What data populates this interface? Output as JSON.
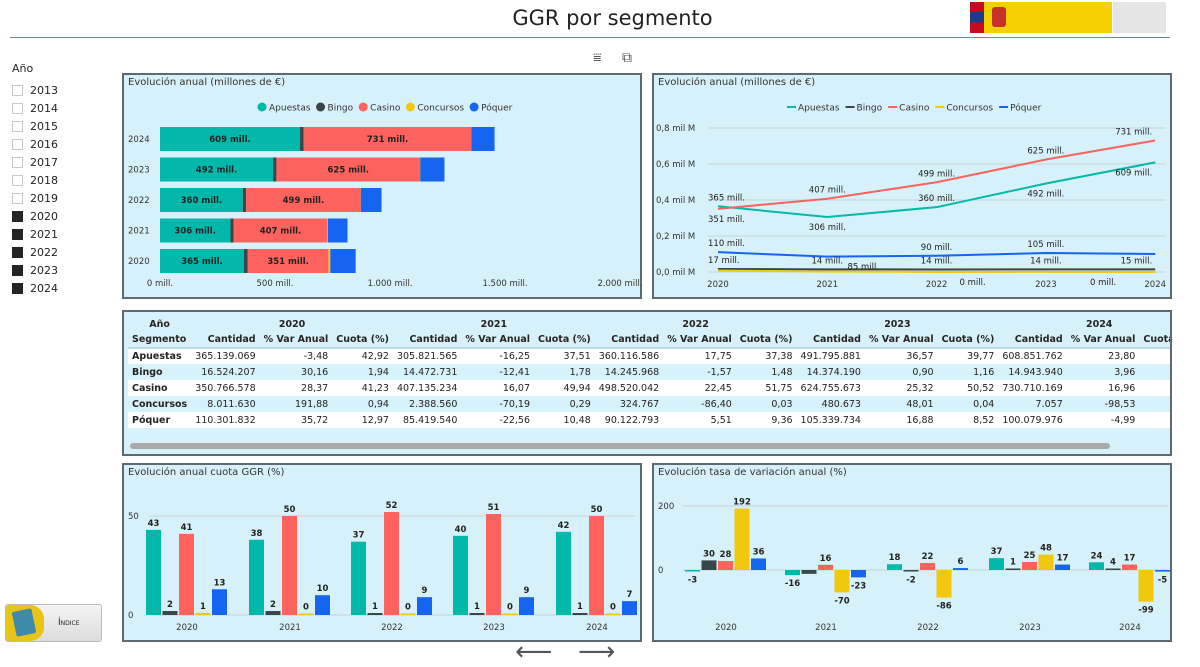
{
  "header": {
    "title": "GGR por segmento"
  },
  "slicer": {
    "title": "Año",
    "items": [
      {
        "label": "2013",
        "checked": false
      },
      {
        "label": "2014",
        "checked": false
      },
      {
        "label": "2015",
        "checked": false
      },
      {
        "label": "2016",
        "checked": false
      },
      {
        "label": "2017",
        "checked": false
      },
      {
        "label": "2018",
        "checked": false
      },
      {
        "label": "2019",
        "checked": false
      },
      {
        "label": "2020",
        "checked": true
      },
      {
        "label": "2021",
        "checked": true
      },
      {
        "label": "2022",
        "checked": true
      },
      {
        "label": "2023",
        "checked": true
      },
      {
        "label": "2024",
        "checked": true
      }
    ]
  },
  "icons": {
    "filter": "filter-icon",
    "focus": "focus-mode-icon",
    "back": "arrow-left-icon",
    "next": "arrow-right-icon"
  },
  "nav": {
    "indice_label": "Índice"
  },
  "colors": {
    "Apuestas": "#01B8AA",
    "Bingo": "#374649",
    "Casino": "#FD625E",
    "Concursos": "#F2C80F",
    "Póquer": "#1565F0"
  },
  "chart_data": [
    {
      "type": "bar",
      "orientation": "horizontal",
      "stacked": true,
      "title": "Evolución anual (millones de €)",
      "legend": "top",
      "categories": [
        "2020",
        "2021",
        "2022",
        "2023",
        "2024"
      ],
      "xticks": [
        "0 mill.",
        "500 mill.",
        "1.000 mill.",
        "1.500 mill.",
        "2.000 mill."
      ],
      "xlim": [
        0,
        2000
      ],
      "series": [
        {
          "name": "Apuestas",
          "values": [
            365.1,
            305.8,
            360.1,
            491.8,
            608.9
          ],
          "labels": [
            "365 mill.",
            "306 mill.",
            "360 mill.",
            "492 mill.",
            "609 mill."
          ]
        },
        {
          "name": "Bingo",
          "values": [
            16.5,
            14.5,
            14.2,
            14.4,
            14.9
          ]
        },
        {
          "name": "Casino",
          "values": [
            350.8,
            407.1,
            498.5,
            624.8,
            730.7
          ],
          "labels": [
            "351 mill.",
            "407 mill.",
            "499 mill.",
            "625 mill.",
            "731 mill."
          ]
        },
        {
          "name": "Concursos",
          "values": [
            8.0,
            2.4,
            0.3,
            0.5,
            0.0
          ]
        },
        {
          "name": "Póquer",
          "values": [
            110.3,
            85.4,
            90.1,
            105.3,
            100.1
          ]
        }
      ]
    },
    {
      "type": "line",
      "title": "Evolución anual (millones de €)",
      "legend": "top",
      "categories": [
        "2020",
        "2021",
        "2022",
        "2023",
        "2024"
      ],
      "yticks": [
        "0,0 mil M",
        "0,2 mil M",
        "0,4 mil M",
        "0,6 mil M",
        "0,8 mil M"
      ],
      "ylim": [
        0,
        800
      ],
      "grid": true,
      "series": [
        {
          "name": "Apuestas",
          "values": [
            365.1,
            305.8,
            360.1,
            491.8,
            608.9
          ],
          "labels": [
            "365 mill.",
            "306 mill.",
            "360 mill.",
            "492 mill.",
            "609 mill."
          ],
          "label_pos": [
            "above",
            "below",
            "above",
            "below",
            "below"
          ]
        },
        {
          "name": "Bingo",
          "values": [
            16.5,
            14.5,
            14.2,
            14.4,
            14.9
          ],
          "labels": [
            "17 mill.",
            "14 mill.",
            "14 mill.",
            "14 mill.",
            "15 mill."
          ],
          "label_pos": [
            "above",
            "above",
            "above",
            "above",
            "above"
          ]
        },
        {
          "name": "Casino",
          "values": [
            350.8,
            407.1,
            498.5,
            624.8,
            730.7
          ],
          "labels": [
            "351 mill.",
            "407 mill.",
            "499 mill.",
            "625 mill.",
            "731 mill."
          ],
          "label_pos": [
            "below",
            "above",
            "above",
            "above",
            "above"
          ]
        },
        {
          "name": "Concursos",
          "values": [
            8.0,
            2.4,
            0.3,
            0.5,
            0.0
          ],
          "labels": [
            null,
            null,
            "0 mill.",
            null,
            "0 mill."
          ],
          "label_pos": [
            "below",
            "below",
            "below",
            "below",
            "below"
          ]
        },
        {
          "name": "Póquer",
          "values": [
            110.3,
            85.4,
            90.1,
            105.3,
            100.1
          ],
          "labels": [
            "110 mill.",
            "85 mill.",
            "90 mill.",
            "105 mill.",
            null
          ],
          "label_pos": [
            "above",
            "below",
            "above",
            "above",
            "above"
          ]
        }
      ]
    },
    {
      "type": "bar",
      "title": "Evolución anual cuota GGR (%)",
      "categories": [
        "2020",
        "2021",
        "2022",
        "2023",
        "2024"
      ],
      "yticks": [
        "0",
        "50"
      ],
      "ylim": [
        0,
        60
      ],
      "series": [
        {
          "name": "Apuestas",
          "values": [
            43,
            38,
            37,
            40,
            42
          ]
        },
        {
          "name": "Bingo",
          "values": [
            2,
            2,
            1,
            1,
            1
          ]
        },
        {
          "name": "Casino",
          "values": [
            41,
            50,
            52,
            51,
            50
          ]
        },
        {
          "name": "Concursos",
          "values": [
            1,
            0,
            0,
            0,
            0
          ]
        },
        {
          "name": "Póquer",
          "values": [
            13,
            10,
            9,
            9,
            7
          ]
        }
      ]
    },
    {
      "type": "bar",
      "title": "Evolución tasa de variación anual (%)",
      "categories": [
        "2020",
        "2021",
        "2022",
        "2023",
        "2024"
      ],
      "yticks": [
        "0",
        "200"
      ],
      "ylim": [
        -110,
        210
      ],
      "series": [
        {
          "name": "Apuestas",
          "values": [
            -3,
            -16,
            18,
            37,
            24
          ]
        },
        {
          "name": "Bingo",
          "values": [
            30,
            -12,
            -2,
            1,
            4
          ],
          "labels": [
            "30",
            null,
            "-2",
            "1",
            "4"
          ]
        },
        {
          "name": "Casino",
          "values": [
            28,
            16,
            22,
            25,
            17
          ]
        },
        {
          "name": "Concursos",
          "values": [
            192,
            -70,
            -86,
            48,
            -99
          ]
        },
        {
          "name": "Póquer",
          "values": [
            36,
            -23,
            6,
            17,
            -5
          ]
        }
      ]
    }
  ],
  "table": {
    "year_label": "Año",
    "segment_label": "Segmento",
    "years": [
      "2020",
      "2021",
      "2022",
      "2023",
      "2024"
    ],
    "subheaders": [
      "Cantidad",
      "% Var Anual",
      "Cuota (%)"
    ],
    "rows": [
      {
        "segment": "Apuestas",
        "cells": [
          "365.139.069",
          "-3,48",
          "42,92",
          "305.821.565",
          "-16,25",
          "37,51",
          "360.116.586",
          "17,75",
          "37,38",
          "491.795.881",
          "36,57",
          "39,77",
          "608.851.762",
          "23,80",
          ""
        ]
      },
      {
        "segment": "Bingo",
        "cells": [
          "16.524.207",
          "30,16",
          "1,94",
          "14.472.731",
          "-12,41",
          "1,78",
          "14.245.968",
          "-1,57",
          "1,48",
          "14.374.190",
          "0,90",
          "1,16",
          "14.943.940",
          "3,96",
          ""
        ]
      },
      {
        "segment": "Casino",
        "cells": [
          "350.766.578",
          "28,37",
          "41,23",
          "407.135.234",
          "16,07",
          "49,94",
          "498.520.042",
          "22,45",
          "51,75",
          "624.755.673",
          "25,32",
          "50,52",
          "730.710.169",
          "16,96",
          ""
        ]
      },
      {
        "segment": "Concursos",
        "cells": [
          "8.011.630",
          "191,88",
          "0,94",
          "2.388.560",
          "-70,19",
          "0,29",
          "324.767",
          "-86,40",
          "0,03",
          "480.673",
          "48,01",
          "0,04",
          "7.057",
          "-98,53",
          ""
        ]
      },
      {
        "segment": "Póquer",
        "cells": [
          "110.301.832",
          "35,72",
          "12,97",
          "85.419.540",
          "-22,56",
          "10,48",
          "90.122.793",
          "5,51",
          "9,36",
          "105.339.734",
          "16,88",
          "8,52",
          "100.079.976",
          "-4,99",
          ""
        ]
      }
    ]
  }
}
